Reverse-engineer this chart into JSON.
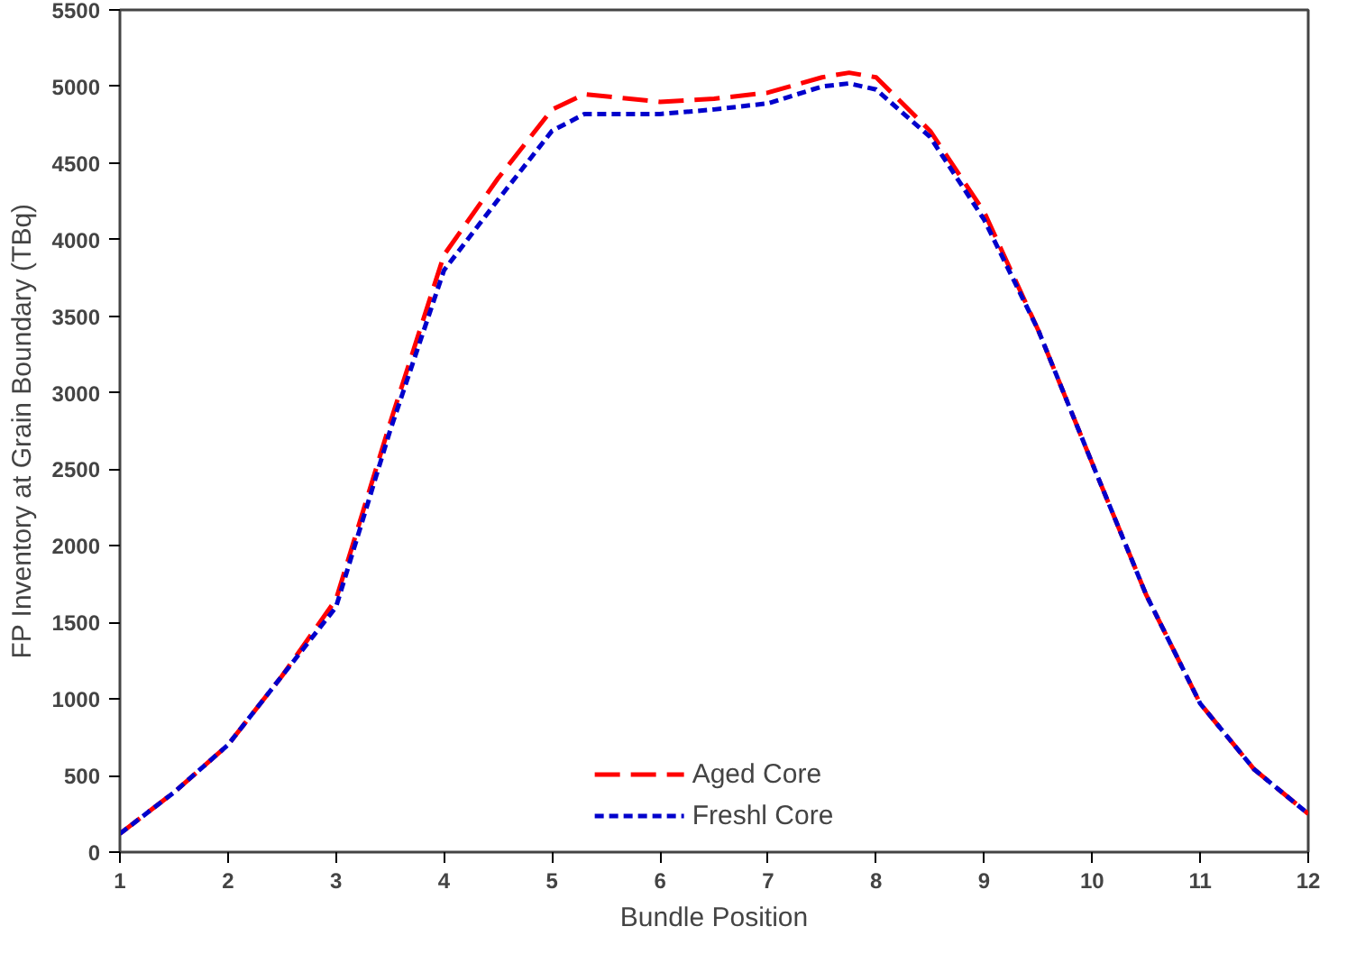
{
  "chart_data": {
    "type": "line",
    "xlabel": "Bundle Position",
    "ylabel": "FP Inventory at Grain Boundary (TBq)",
    "x": [
      1,
      1.5,
      2,
      2.5,
      3,
      3.5,
      4,
      4.5,
      5,
      5.3,
      6,
      6.5,
      7,
      7.5,
      7.75,
      8,
      8.5,
      9,
      9.5,
      10,
      10.5,
      11,
      11.5,
      12
    ],
    "series": [
      {
        "name": "Aged Core",
        "color": "#ff0000",
        "line_style": "dashed",
        "values": [
          120,
          390,
          700,
          1150,
          1650,
          2800,
          3900,
          4400,
          4850,
          4950,
          4900,
          4920,
          4960,
          5060,
          5090,
          5060,
          4710,
          4180,
          3410,
          2540,
          1680,
          970,
          540,
          250
        ]
      },
      {
        "name": "Freshl Core",
        "color": "#0000cc",
        "line_style": "dotted",
        "values": [
          120,
          390,
          700,
          1150,
          1600,
          2750,
          3800,
          4260,
          4710,
          4820,
          4820,
          4850,
          4890,
          5000,
          5020,
          4980,
          4670,
          4130,
          3410,
          2540,
          1680,
          970,
          540,
          250
        ]
      }
    ],
    "xlim": [
      1,
      12
    ],
    "xticks": [
      1,
      2,
      3,
      4,
      5,
      6,
      7,
      8,
      9,
      10,
      11,
      12
    ],
    "ylim": [
      0,
      5500
    ],
    "yticks": [
      0,
      500,
      1000,
      1500,
      2000,
      2500,
      3000,
      3500,
      4000,
      4500,
      5000,
      5500
    ],
    "grid": false,
    "legend": "bottom"
  }
}
